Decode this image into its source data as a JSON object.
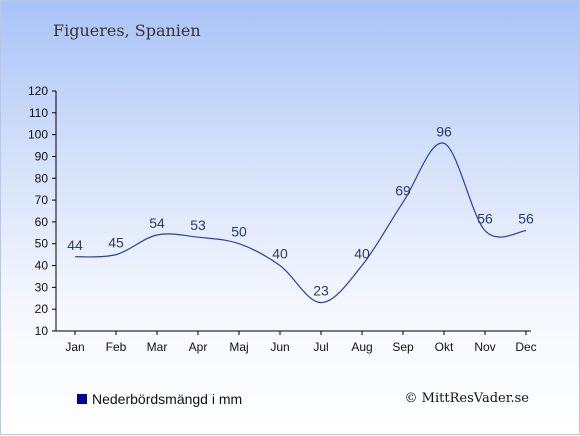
{
  "title": "Figueres, Spanien",
  "legend": {
    "label": "Nederbördsmängd i mm",
    "color": "#0000a0"
  },
  "credit": "© MittResVader.se",
  "chart_data": {
    "type": "line",
    "categories": [
      "Jan",
      "Feb",
      "Mar",
      "Apr",
      "Maj",
      "Jun",
      "Jul",
      "Aug",
      "Sep",
      "Okt",
      "Nov",
      "Dec"
    ],
    "series": [
      {
        "name": "Nederbördsmängd i mm",
        "values": [
          44,
          45,
          54,
          53,
          50,
          40,
          23,
          40,
          69,
          96,
          56,
          56
        ],
        "color": "#2a3fa8"
      }
    ],
    "ylim": [
      10,
      120
    ],
    "yticks": [
      10,
      20,
      30,
      40,
      50,
      60,
      70,
      80,
      90,
      100,
      110,
      120
    ],
    "grid": false,
    "data_labels": true,
    "legend_position": "bottom-left"
  }
}
